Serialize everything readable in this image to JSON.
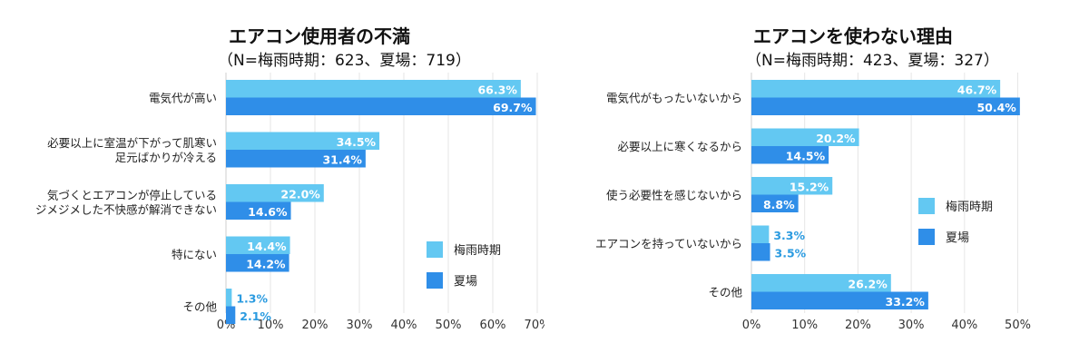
{
  "colors": {
    "rainy": "#63c8f2",
    "summer": "#2f8ee8",
    "grid": "#e6e6e6",
    "value_text_outside": "#2b9be0",
    "value_text_inside": "#ffffff"
  },
  "chart_data": [
    {
      "type": "bar",
      "orientation": "horizontal",
      "title": "エアコン使用者の不満",
      "subtitle": "（N=梅雨時期：623、夏場：719）",
      "categories": [
        "電気代が高い",
        "必要以上に室温が下がって肌寒い\n足元ばかりが冷える",
        "気づくとエアコンが停止している\nジメジメした不快感が解消できない",
        "特にない",
        "その他"
      ],
      "series": [
        {
          "name": "梅雨時期",
          "values": [
            66.3,
            34.5,
            22.0,
            14.4,
            1.3
          ],
          "labels": [
            "66.3%",
            "34.5%",
            "22.0%",
            "14.4%",
            "1.3%"
          ]
        },
        {
          "name": "夏場",
          "values": [
            69.7,
            31.4,
            14.6,
            14.2,
            2.1
          ],
          "labels": [
            "69.7%",
            "31.4%",
            "14.6%",
            "14.2%",
            "2.1%"
          ]
        }
      ],
      "xlim": [
        0,
        70
      ],
      "xticks": [
        "0%",
        "10%",
        "20%",
        "30%",
        "40%",
        "50%",
        "60%",
        "70%"
      ],
      "legend_position": "inside-bottom-right",
      "grid": true
    },
    {
      "type": "bar",
      "orientation": "horizontal",
      "title": "エアコンを使わない理由",
      "subtitle": "（N=梅雨時期：423、夏場：327）",
      "categories": [
        "電気代がもったいないから",
        "必要以上に寒くなるから",
        "使う必要性を感じないから",
        "エアコンを持っていないから",
        "その他"
      ],
      "series": [
        {
          "name": "梅雨時期",
          "values": [
            46.7,
            20.2,
            15.2,
            3.3,
            26.2
          ],
          "labels": [
            "46.7%",
            "20.2%",
            "15.2%",
            "3.3%",
            "26.2%"
          ]
        },
        {
          "name": "夏場",
          "values": [
            50.4,
            14.5,
            8.8,
            3.5,
            33.2
          ],
          "labels": [
            "50.4%",
            "14.5%",
            "8.8%",
            "3.5%",
            "33.2%"
          ]
        }
      ],
      "xlim": [
        0,
        50
      ],
      "xticks": [
        "0%",
        "10%",
        "20%",
        "30%",
        "40%",
        "50%"
      ],
      "legend_position": "inside-middle-right",
      "grid": true
    }
  ]
}
